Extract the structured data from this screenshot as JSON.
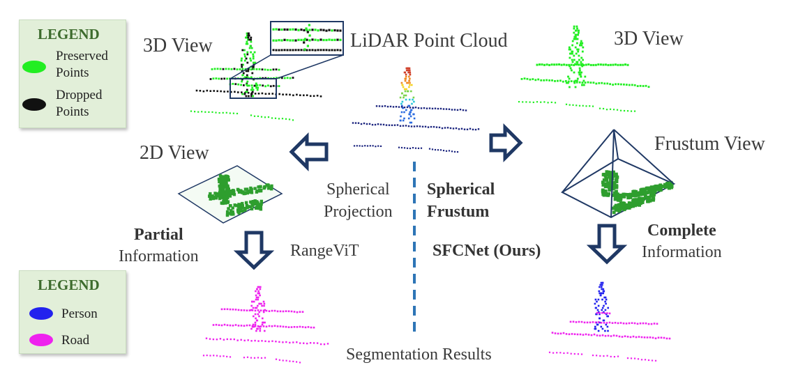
{
  "legend_top": {
    "title": "LEGEND",
    "items": [
      {
        "label_line1": "Preserved",
        "label_line2": "Points",
        "color": "#22ee22"
      },
      {
        "label_line1": "Dropped",
        "label_line2": "Points",
        "color": "#111111"
      }
    ]
  },
  "legend_bottom": {
    "title": "LEGEND",
    "items": [
      {
        "label": "Person",
        "color": "#2222ee"
      },
      {
        "label": "Road",
        "color": "#ee22ee"
      }
    ]
  },
  "labels": {
    "view3d_left": "3D View",
    "lidar": "LiDAR Point Cloud",
    "view3d_right": "3D View",
    "view2d": "2D View",
    "frustum_view": "Frustum View",
    "spherical_proj_line1": "Spherical",
    "spherical_proj_line2": "Projection",
    "spherical_frustum_line1": "Spherical",
    "spherical_frustum_line2": "Frustum",
    "partial_bold": "Partial",
    "partial_rest": "Information",
    "complete_bold": "Complete",
    "complete_rest": "Information",
    "rangevit": "RangeViT",
    "sfcnet": "SFCNet (Ours)",
    "segmentation": "Segmentation Results"
  },
  "colors": {
    "arrow_outline": "#1f3864",
    "preserved": "#22ee22",
    "dropped": "#111111",
    "person": "#2222ee",
    "road": "#ee22ee",
    "lidar_ground": "#1a237e",
    "divider": "#2e75b6",
    "image_fill": "#2e9e2e"
  }
}
